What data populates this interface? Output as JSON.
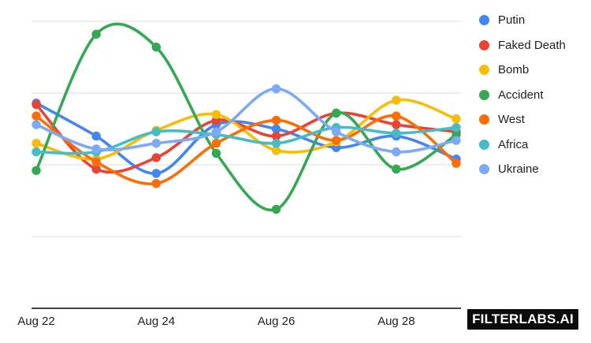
{
  "chart_data": {
    "type": "line",
    "title": "",
    "xlabel": "",
    "ylabel": "",
    "curve": "smooth",
    "grid": "horizontal",
    "legend_position": "right",
    "x": [
      "Aug 22",
      "Aug 23",
      "Aug 24",
      "Aug 25",
      "Aug 26",
      "Aug 27",
      "Aug 28",
      "Aug 29"
    ],
    "x_axis_tick_labels": [
      "Aug 22",
      "Aug 24",
      "Aug 26",
      "Aug 28"
    ],
    "y_axis": {
      "min": 0,
      "max": 100,
      "gridline_step": 25,
      "labels_visible": false
    },
    "series": [
      {
        "name": "Putin",
        "color": "#4285F4",
        "values": [
          71.5,
          60.0,
          47.0,
          64.0,
          62.5,
          56.0,
          60.0,
          52.0
        ]
      },
      {
        "name": "Faked Death",
        "color": "#EA4335",
        "values": [
          71.0,
          48.5,
          52.5,
          65.5,
          60.0,
          68.0,
          64.0,
          61.5
        ]
      },
      {
        "name": "Bomb",
        "color": "#FBBC04",
        "values": [
          57.5,
          52.0,
          62.0,
          67.5,
          55.0,
          58.0,
          72.5,
          66.0
        ]
      },
      {
        "name": "Accident",
        "color": "#34A853",
        "values": [
          48.0,
          95.5,
          91.0,
          54.0,
          34.5,
          68.0,
          48.5,
          60.5
        ]
      },
      {
        "name": "West",
        "color": "#FF6D01",
        "values": [
          67.0,
          51.0,
          43.5,
          57.5,
          65.5,
          58.5,
          67.0,
          50.5
        ]
      },
      {
        "name": "Africa",
        "color": "#46BDC6",
        "values": [
          54.5,
          54.5,
          61.5,
          60.5,
          57.5,
          63.0,
          61.0,
          63.0
        ]
      },
      {
        "name": "Ukraine",
        "color": "#7BAAF7",
        "values": [
          64.0,
          55.5,
          57.5,
          61.5,
          76.5,
          61.5,
          54.5,
          58.5
        ]
      }
    ],
    "style": {
      "gridline_color": "#dcdcdc",
      "axis_line_color": "#424242",
      "tick_label_color": "#1f1f1f",
      "line_width": 3.6,
      "point_radius": 5.7
    }
  },
  "branding": {
    "logo_text": "FILTERLABS.AI"
  }
}
